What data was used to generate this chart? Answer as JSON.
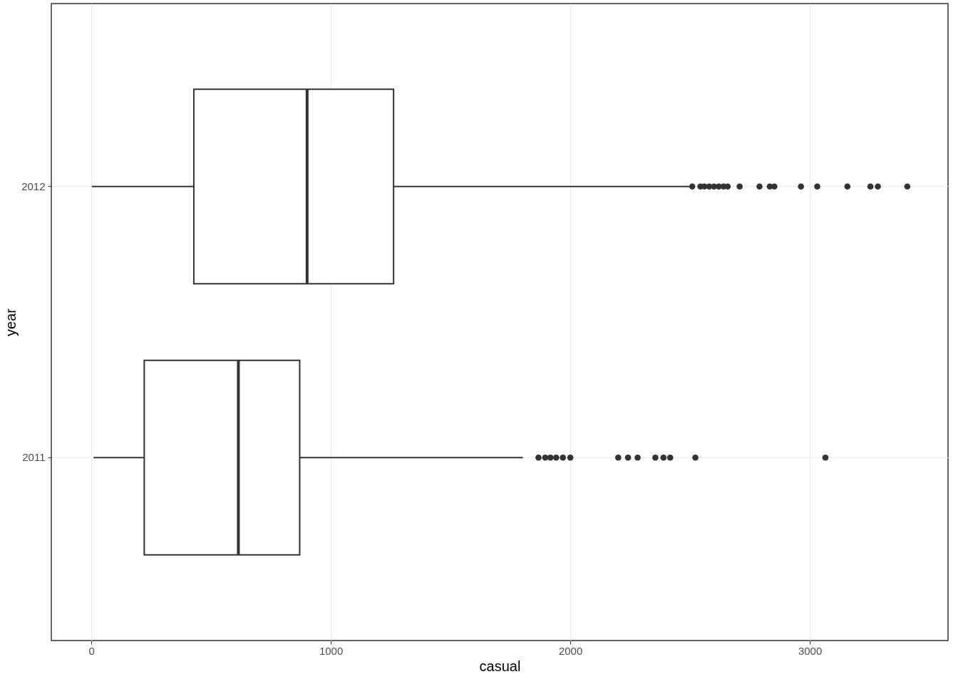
{
  "chart_data": {
    "type": "box",
    "orientation": "horizontal",
    "xlabel": "casual",
    "ylabel": "year",
    "categories": [
      "2012",
      "2011"
    ],
    "boxes": [
      {
        "low": 2,
        "q1": 428,
        "median": 901,
        "q3": 1262,
        "high": 2497,
        "outliers": [
          2509,
          2543,
          2560,
          2580,
          2600,
          2620,
          2640,
          2657,
          2707,
          2790,
          2833,
          2852,
          2963,
          3031,
          3157,
          3253,
          3284,
          3407
        ]
      },
      {
        "low": 9,
        "q1": 221,
        "median": 614,
        "q3": 870,
        "high": 1802,
        "outliers": [
          1867,
          1895,
          1917,
          1941,
          1969,
          2000,
          2200,
          2241,
          2281,
          2355,
          2389,
          2417,
          2522,
          3065
        ]
      }
    ],
    "color": "#333333",
    "xlim": [
      -167,
      3577
    ],
    "xticks": [
      0,
      1000,
      2000,
      3000
    ],
    "grid": true
  }
}
